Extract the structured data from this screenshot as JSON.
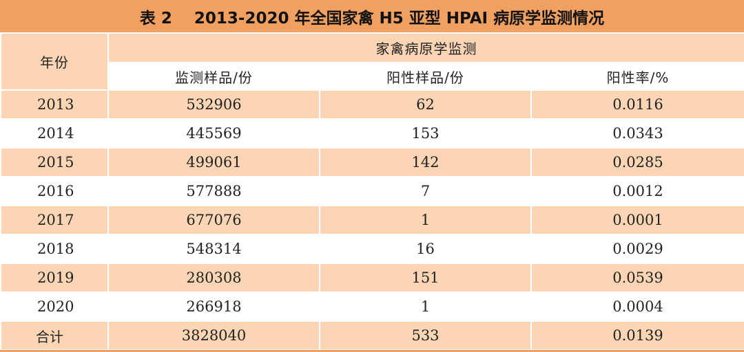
{
  "title": "表 2    2013-2020 年全国家禽 H5 亚型 HPAI 病原学监测情况",
  "header": {
    "year": "年份",
    "group": "家禽病原学监测",
    "col_samples": "监测样品/份",
    "col_positive": "阳性样品/份",
    "col_rate": "阳性率/%"
  },
  "rows": [
    {
      "year": "2013",
      "samples": "532906",
      "positive": "62",
      "rate": "0.0116"
    },
    {
      "year": "2014",
      "samples": "445569",
      "positive": "153",
      "rate": "0.0343"
    },
    {
      "year": "2015",
      "samples": "499061",
      "positive": "142",
      "rate": "0.0285"
    },
    {
      "year": "2016",
      "samples": "577888",
      "positive": "7",
      "rate": "0.0012"
    },
    {
      "year": "2017",
      "samples": "677076",
      "positive": "1",
      "rate": "0.0001"
    },
    {
      "year": "2018",
      "samples": "548314",
      "positive": "16",
      "rate": "0.0029"
    },
    {
      "year": "2019",
      "samples": "280308",
      "positive": "151",
      "rate": "0.0539"
    },
    {
      "year": "2020",
      "samples": "266918",
      "positive": "1",
      "rate": "0.0004"
    }
  ],
  "total": {
    "label": "合计",
    "samples": "3828040",
    "positive": "533",
    "rate": "0.0139"
  },
  "colors": {
    "title_bg": "#f0a061",
    "shade": "#fbd5b4",
    "white": "#ffffff"
  }
}
